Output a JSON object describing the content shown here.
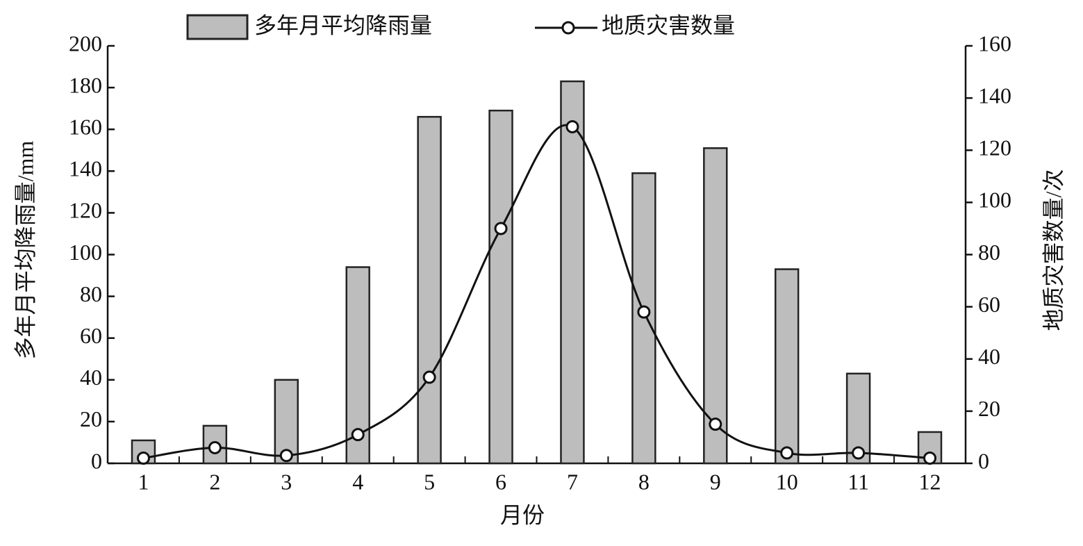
{
  "chart_data": {
    "type": "bar",
    "xlabel": "月份",
    "ylabel": "多年月平均降雨量/mm",
    "y2label": "地质灾害数量/次",
    "categories": [
      "1",
      "2",
      "3",
      "4",
      "5",
      "6",
      "7",
      "8",
      "9",
      "10",
      "11",
      "12"
    ],
    "series": [
      {
        "name": "多年月平均降雨量",
        "type": "bar",
        "color": "#bdbdbd",
        "values": [
          11,
          18,
          40,
          94,
          166,
          169,
          183,
          139,
          151,
          93,
          43,
          15
        ]
      },
      {
        "name": "地质灾害数量",
        "type": "line",
        "axis": "y2",
        "color": "#111111",
        "values": [
          2,
          6,
          3,
          11,
          33,
          90,
          129,
          58,
          15,
          4,
          4,
          2
        ]
      }
    ],
    "ylim": [
      0,
      200
    ],
    "yticks": [
      0,
      20,
      40,
      60,
      80,
      100,
      120,
      140,
      160,
      180,
      200
    ],
    "y2lim": [
      0,
      160
    ],
    "y2ticks": [
      0,
      20,
      40,
      60,
      80,
      100,
      120,
      140,
      160
    ],
    "grid": false
  }
}
